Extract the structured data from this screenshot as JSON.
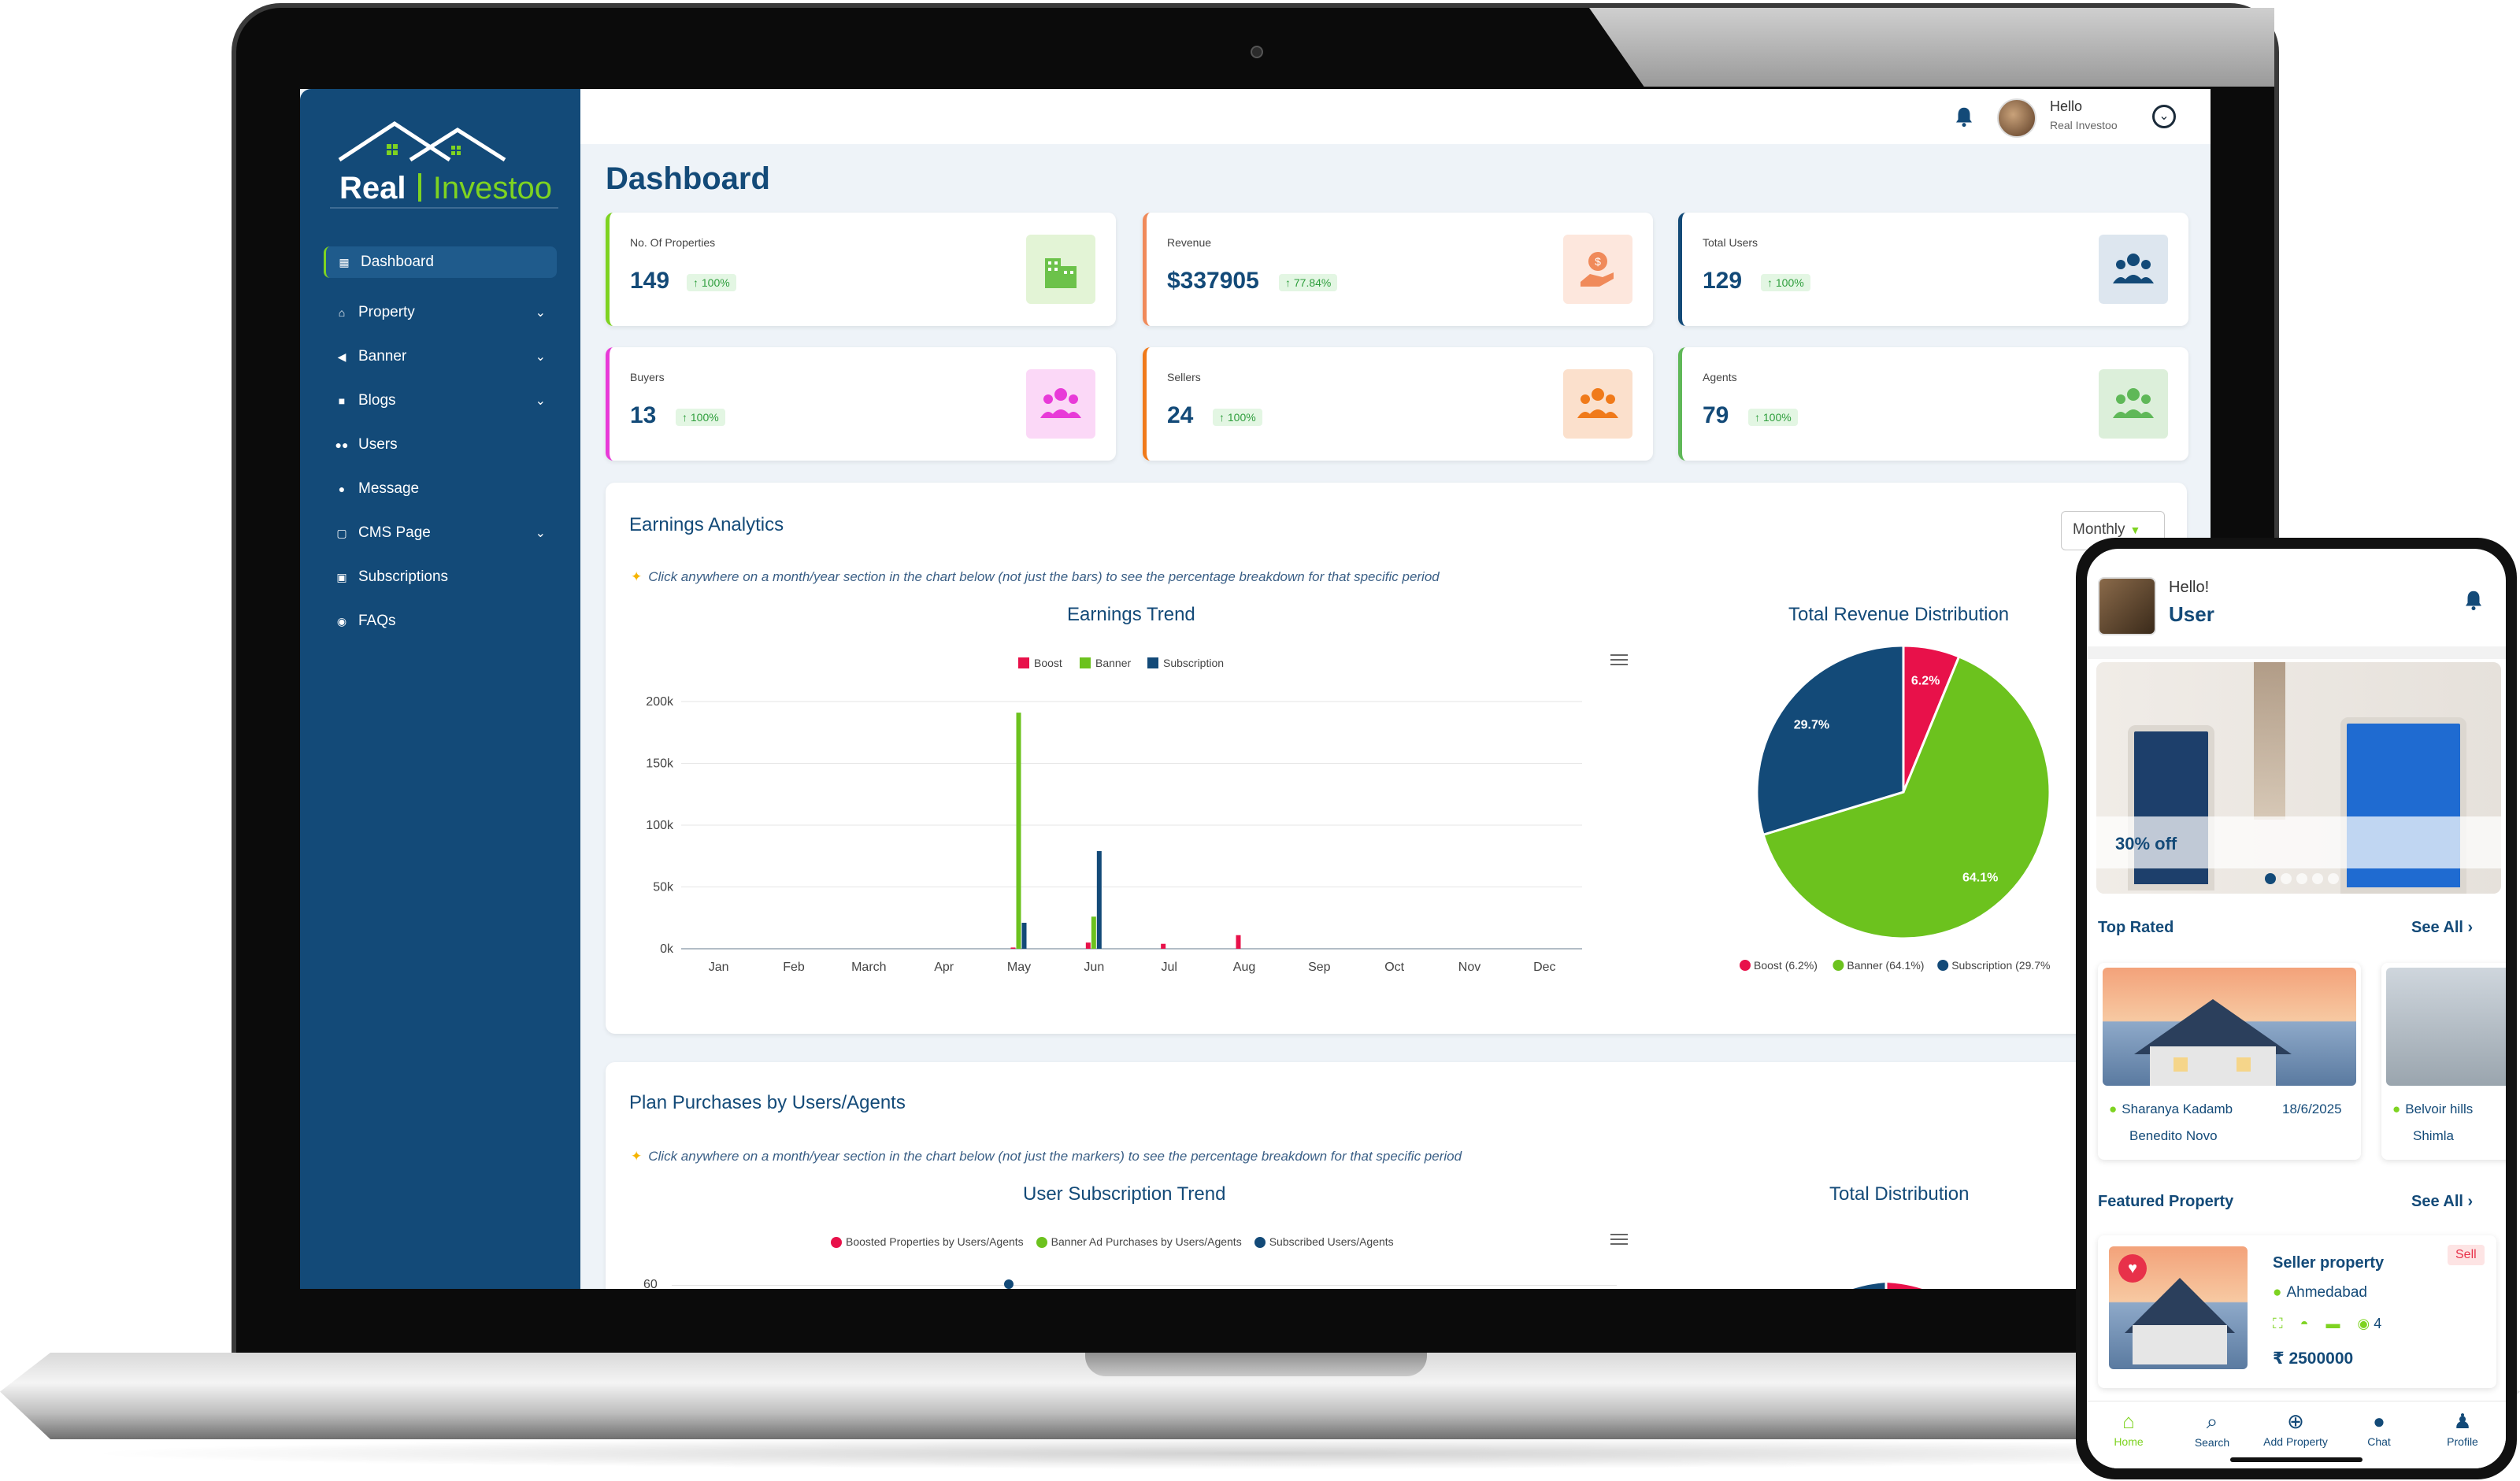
{
  "brand": {
    "logo_main": "Real",
    "logo_accent": "Investoo"
  },
  "sidebar": {
    "items": [
      {
        "label": "Dashboard",
        "icon": "grid-icon",
        "has_chevron": false
      },
      {
        "label": "Property",
        "icon": "home-icon",
        "has_chevron": true
      },
      {
        "label": "Banner",
        "icon": "megaphone-icon",
        "has_chevron": true
      },
      {
        "label": "Blogs",
        "icon": "briefcase-icon",
        "has_chevron": true
      },
      {
        "label": "Users",
        "icon": "users-icon",
        "has_chevron": false
      },
      {
        "label": "Message",
        "icon": "chat-icon",
        "has_chevron": false
      },
      {
        "label": "CMS Page",
        "icon": "clipboard-icon",
        "has_chevron": true
      },
      {
        "label": "Subscriptions",
        "icon": "package-icon",
        "has_chevron": false
      },
      {
        "label": "FAQs",
        "icon": "faq-icon",
        "has_chevron": false
      }
    ]
  },
  "topbar": {
    "hello": "Hello",
    "name": "Real Investoo"
  },
  "page": {
    "title": "Dashboard"
  },
  "stats": [
    {
      "label": "No. Of Properties",
      "value": "149",
      "change": "100%",
      "accent": "#7ed321",
      "icon_bg": "#e3f4d6",
      "icon_color": "#6cc24a",
      "icon": "building-icon"
    },
    {
      "label": "Revenue",
      "value": "$337905",
      "change": "77.84%",
      "accent": "#f08a5a",
      "icon_bg": "#fde7dd",
      "icon_color": "#f08a5a",
      "icon": "money-hand-icon"
    },
    {
      "label": "Total Users",
      "value": "129",
      "change": "100%",
      "accent": "#134a78",
      "icon_bg": "#dde6ef",
      "icon_color": "#134a78",
      "icon": "users-icon"
    },
    {
      "label": "Buyers",
      "value": "13",
      "change": "100%",
      "accent": "#e83ad8",
      "icon_bg": "#fbd8f7",
      "icon_color": "#e83ad8",
      "icon": "users-icon"
    },
    {
      "label": "Sellers",
      "value": "24",
      "change": "100%",
      "accent": "#f07a1a",
      "icon_bg": "#fbe0cc",
      "icon_color": "#f07a1a",
      "icon": "users-icon"
    },
    {
      "label": "Agents",
      "value": "79",
      "change": "100%",
      "accent": "#5fb858",
      "icon_bg": "#dcefda",
      "icon_color": "#5fb858",
      "icon": "users-icon"
    }
  ],
  "earnings": {
    "title": "Earnings Analytics",
    "hint": "Click anywhere on a month/year section in the chart below (not just the bars) to see the percentage breakdown for that specific period",
    "dropdown": "Monthly",
    "bar_title": "Earnings Trend",
    "pie_title": "Total Revenue Distribution"
  },
  "plans": {
    "title": "Plan Purchases by Users/Agents",
    "hint": "Click anywhere on a month/year section in the chart below (not just the markers) to see the percentage breakdown for that specific period",
    "line_title": "User Subscription Trend",
    "pie_title": "Total Distribution",
    "legend": [
      "Boosted Properties by Users/Agents",
      "Banner Ad Purchases by Users/Agents",
      "Subscribed Users/Agents"
    ],
    "y_top": "60"
  },
  "colors": {
    "boost": "#e8114a",
    "banner": "#6cc21e",
    "subscription": "#134a78"
  },
  "chart_data": [
    {
      "type": "bar",
      "title": "Earnings Trend",
      "categories": [
        "Jan",
        "Feb",
        "March",
        "Apr",
        "May",
        "Jun",
        "Jul",
        "Aug",
        "Sep",
        "Oct",
        "Nov",
        "Dec"
      ],
      "series": [
        {
          "name": "Boost",
          "values": [
            0,
            0,
            0,
            0,
            1000,
            5000,
            4000,
            11000,
            0,
            0,
            0,
            0
          ]
        },
        {
          "name": "Banner",
          "values": [
            0,
            0,
            0,
            0,
            191000,
            26000,
            0,
            0,
            0,
            0,
            0,
            0
          ]
        },
        {
          "name": "Subscription",
          "values": [
            0,
            0,
            0,
            0,
            21000,
            79000,
            0,
            0,
            0,
            0,
            0,
            0
          ]
        }
      ],
      "y_ticks": [
        "0k",
        "50k",
        "100k",
        "150k",
        "200k"
      ],
      "ylim": [
        0,
        200000
      ],
      "legend": "top-center",
      "grid": true
    },
    {
      "type": "pie",
      "title": "Total Revenue Distribution",
      "labels": [
        "Boost",
        "Banner",
        "Subscription"
      ],
      "values": [
        6.2,
        64.1,
        29.7
      ],
      "slice_labels": [
        "6.2%",
        "64.1%",
        "29.7%"
      ],
      "legend_labels": [
        "Boost (6.2%)",
        "Banner (64.1%)",
        "Subscription (29.7%"
      ],
      "legend": "bottom"
    }
  ],
  "phone": {
    "hello": "Hello!",
    "user": "User",
    "offer": "30% off",
    "top_rated": "Top Rated",
    "see_all": "See All",
    "featured": "Featured Property",
    "card1": {
      "owner": "Sharanya Kadamb",
      "date": "18/6/2025",
      "area": "Benedito Novo"
    },
    "card2": {
      "owner": "Belvoir hills",
      "area": "Shimla"
    },
    "featured_card": {
      "title": "Seller property",
      "location": "Ahmedabad",
      "views": "4",
      "price": "₹ 2500000",
      "tag": "Sell"
    },
    "nav": [
      "Home",
      "Search",
      "Add Property",
      "Chat",
      "Profile"
    ]
  }
}
